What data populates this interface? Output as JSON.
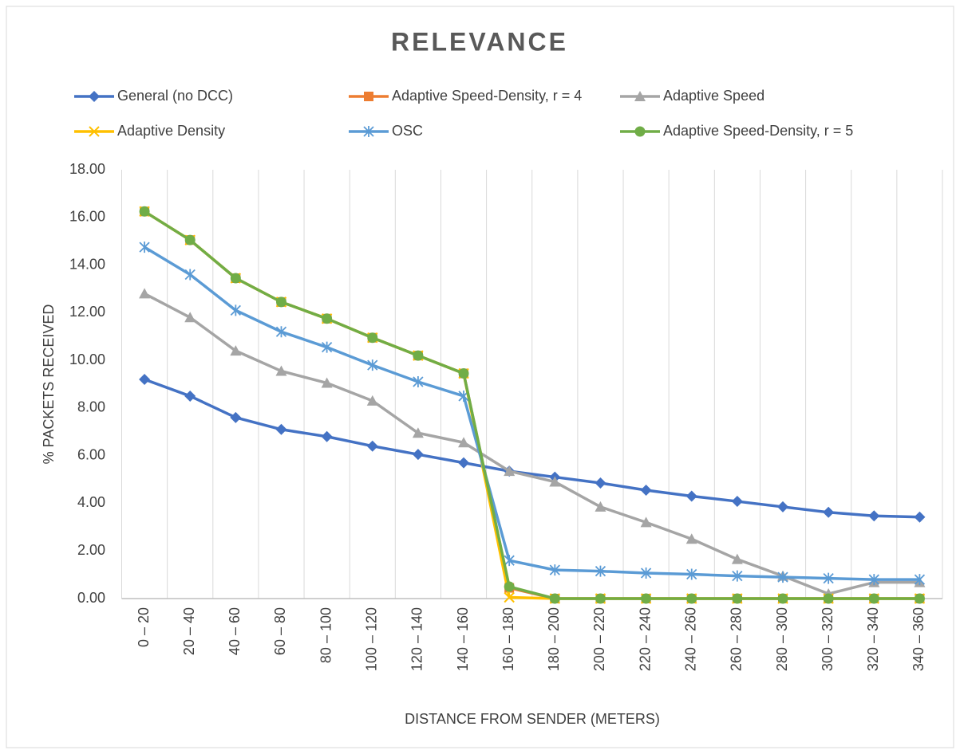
{
  "chart_data": {
    "type": "line",
    "title": "RELEVANCE",
    "x_label": "DISTANCE FROM SENDER (METERS)",
    "y_label": "% PACKETS RECEIVED",
    "categories": [
      "0 – 20",
      "20 – 40",
      "40 – 60",
      "60 – 80",
      "80 – 100",
      "100 – 120",
      "120 – 140",
      "140 – 160",
      "160 – 180",
      "180 – 200",
      "200 – 220",
      "220 – 240",
      "240 – 260",
      "260 – 280",
      "280 – 300",
      "300 – 320",
      "320 – 340",
      "340 – 360"
    ],
    "series": [
      {
        "name": "General (no DCC)",
        "color": "#4472c4",
        "marker": "diamond",
        "values": [
          9.2,
          8.5,
          7.6,
          7.1,
          6.8,
          6.4,
          6.05,
          5.7,
          5.35,
          5.1,
          4.85,
          4.55,
          4.3,
          4.08,
          3.85,
          3.62,
          3.47,
          3.42
        ]
      },
      {
        "name": "Adaptive Speed-Density, r = 4",
        "color": "#ed7d31",
        "marker": "square",
        "values": [
          16.25,
          15.05,
          13.45,
          12.45,
          11.75,
          10.95,
          10.2,
          9.45,
          0.45,
          0,
          0,
          0,
          0,
          0,
          0,
          0,
          0,
          0
        ]
      },
      {
        "name": "Adaptive Speed",
        "color": "#a5a5a5",
        "marker": "triangle",
        "values": [
          12.8,
          11.8,
          10.4,
          9.55,
          9.05,
          8.3,
          6.95,
          6.55,
          5.35,
          4.9,
          3.85,
          3.2,
          2.5,
          1.65,
          0.95,
          0.2,
          0.68,
          0.68
        ]
      },
      {
        "name": "Adaptive Density",
        "color": "#ffc000",
        "marker": "x",
        "values": [
          16.25,
          15.05,
          13.45,
          12.45,
          11.75,
          10.95,
          10.2,
          9.45,
          0.05,
          0,
          0,
          0,
          0,
          0,
          0,
          0,
          0,
          0
        ]
      },
      {
        "name": "OSC",
        "color": "#5b9bd5",
        "marker": "asterisk",
        "values": [
          14.75,
          13.6,
          12.1,
          11.2,
          10.55,
          9.8,
          9.1,
          8.5,
          1.6,
          1.2,
          1.15,
          1.07,
          1.02,
          0.95,
          0.9,
          0.85,
          0.8,
          0.8
        ]
      },
      {
        "name": "Adaptive Speed-Density, r = 5",
        "color": "#70ad47",
        "marker": "circle",
        "values": [
          16.25,
          15.05,
          13.45,
          12.45,
          11.75,
          10.95,
          10.2,
          9.45,
          0.5,
          0,
          0,
          0,
          0,
          0,
          0,
          0,
          0,
          0
        ]
      }
    ],
    "ylim": [
      0,
      18
    ],
    "yticks": [
      {
        "value": 0,
        "label": "0.00"
      },
      {
        "value": 2,
        "label": "2.00"
      },
      {
        "value": 4,
        "label": "4.00"
      },
      {
        "value": 6,
        "label": "6.00"
      },
      {
        "value": 8,
        "label": "8.00"
      },
      {
        "value": 10,
        "label": "10.00"
      },
      {
        "value": 12,
        "label": "12.00"
      },
      {
        "value": 14,
        "label": "14.00"
      },
      {
        "value": 16,
        "label": "16.00"
      },
      {
        "value": 18,
        "label": "18.00"
      }
    ],
    "grid": true,
    "legend": "top"
  }
}
